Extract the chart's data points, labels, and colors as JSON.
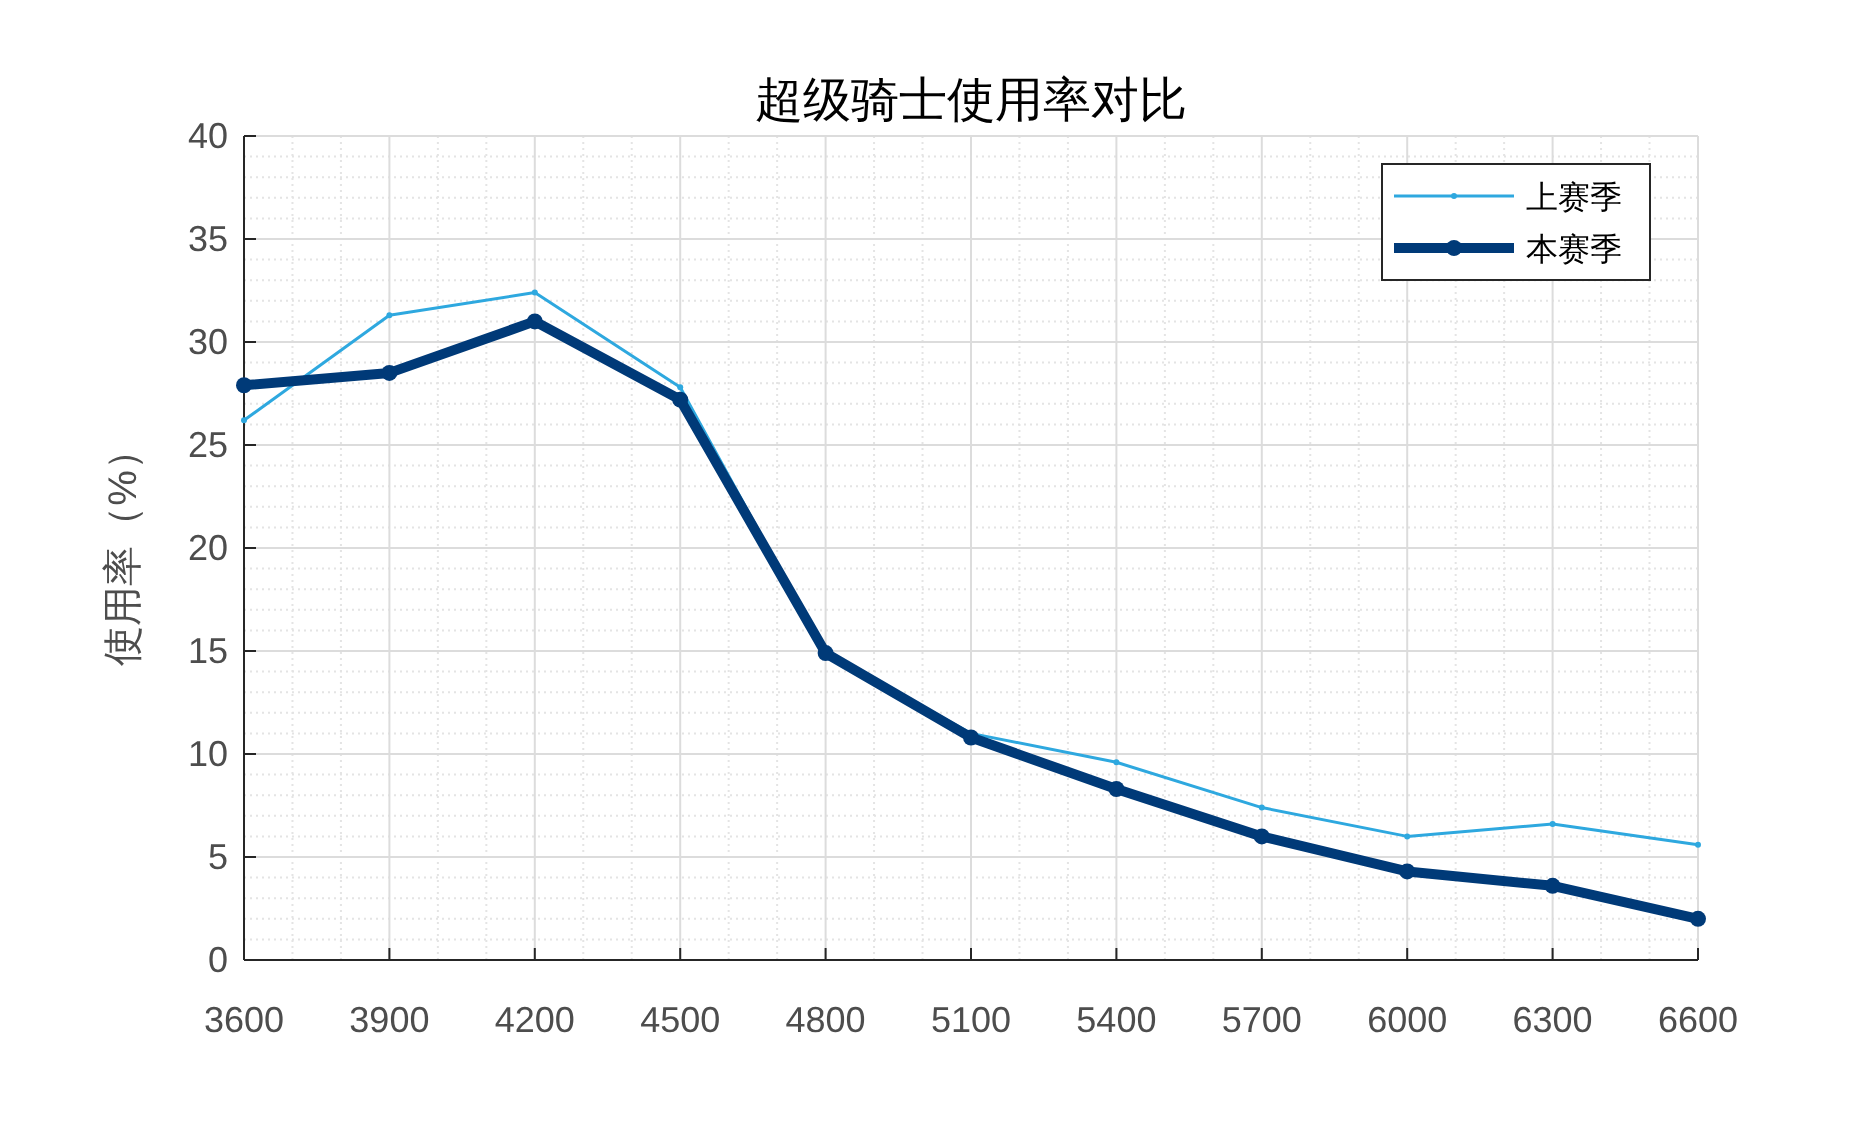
{
  "chart_data": {
    "type": "line",
    "title": "超级骑士使用率对比",
    "ylabel": "使用率（%）",
    "x": [
      3600,
      3900,
      4200,
      4500,
      4800,
      5100,
      5400,
      5700,
      6000,
      6300,
      6600
    ],
    "series": [
      {
        "name": "上赛季",
        "color": "#2ea8df",
        "marker": "circle",
        "values": [
          26.2,
          31.3,
          32.4,
          27.8,
          14.9,
          11.0,
          9.6,
          7.4,
          6.0,
          6.6,
          5.6
        ]
      },
      {
        "name": "本赛季",
        "color": "#003a78",
        "marker": "circle",
        "values": [
          27.9,
          28.5,
          31.0,
          27.2,
          14.9,
          10.8,
          8.3,
          6.0,
          4.3,
          3.6,
          2.0
        ]
      }
    ],
    "xlim": [
      3600,
      6600
    ],
    "xticks": [
      3600,
      3900,
      4200,
      4500,
      4800,
      5100,
      5400,
      5700,
      6000,
      6300,
      6600
    ],
    "ylim": [
      0,
      40
    ],
    "yticks": [
      0,
      5,
      10,
      15,
      20,
      25,
      30,
      35,
      40
    ],
    "grid": true,
    "legend": "top right",
    "line_style": "solid"
  }
}
